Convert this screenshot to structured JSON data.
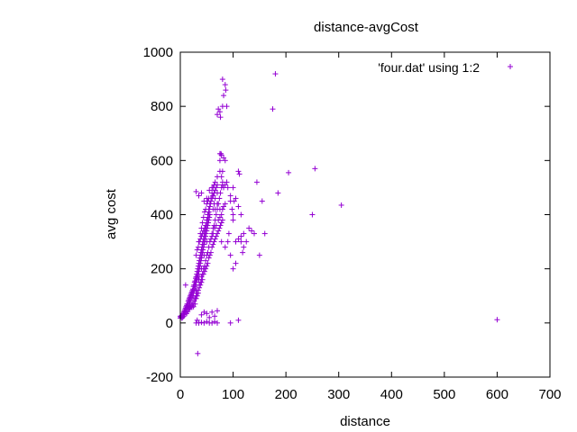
{
  "chart_data": {
    "type": "scatter",
    "title": "distance-avgCost",
    "xlabel": "distance",
    "ylabel": "avg cost",
    "xlim": [
      0,
      700
    ],
    "ylim": [
      -200,
      1000
    ],
    "xticks": [
      "0",
      "100",
      "200",
      "300",
      "400",
      "500",
      "600",
      "700"
    ],
    "yticks": [
      "-200",
      "0",
      "200",
      "400",
      "600",
      "800",
      "1000"
    ],
    "grid": false,
    "legend_position": "top-right",
    "marker": "+",
    "colors": {
      "series": "#9400d3",
      "axes": "#000000"
    },
    "series": [
      {
        "name": "'four.dat' using 1:2",
        "note_cluster": "dense cluster of points along a rising band from (0, ~20) to (~80, ~500), rendered from the points below",
        "points": [
          [
            0,
            18
          ],
          [
            1,
            22
          ],
          [
            2,
            25
          ],
          [
            3,
            28
          ],
          [
            4,
            20
          ],
          [
            5,
            35
          ],
          [
            6,
            30
          ],
          [
            7,
            40
          ],
          [
            8,
            45
          ],
          [
            9,
            50
          ],
          [
            10,
            55
          ],
          [
            10,
            40
          ],
          [
            11,
            60
          ],
          [
            12,
            65
          ],
          [
            12,
            50
          ],
          [
            13,
            70
          ],
          [
            14,
            58
          ],
          [
            15,
            80
          ],
          [
            15,
            62
          ],
          [
            16,
            85
          ],
          [
            17,
            90
          ],
          [
            17,
            70
          ],
          [
            18,
            95
          ],
          [
            18,
            75
          ],
          [
            19,
            100
          ],
          [
            20,
            105
          ],
          [
            20,
            85
          ],
          [
            21,
            110
          ],
          [
            22,
            115
          ],
          [
            22,
            95
          ],
          [
            23,
            120
          ],
          [
            24,
            125
          ],
          [
            24,
            100
          ],
          [
            25,
            135
          ],
          [
            25,
            110
          ],
          [
            26,
            140
          ],
          [
            26,
            118
          ],
          [
            27,
            150
          ],
          [
            27,
            125
          ],
          [
            28,
            155
          ],
          [
            28,
            135
          ],
          [
            29,
            165
          ],
          [
            29,
            140
          ],
          [
            30,
            170
          ],
          [
            30,
            150
          ],
          [
            30,
            120
          ],
          [
            31,
            180
          ],
          [
            31,
            160
          ],
          [
            32,
            190
          ],
          [
            32,
            165
          ],
          [
            33,
            200
          ],
          [
            33,
            175
          ],
          [
            34,
            210
          ],
          [
            34,
            180
          ],
          [
            35,
            220
          ],
          [
            35,
            190
          ],
          [
            35,
            160
          ],
          [
            36,
            230
          ],
          [
            36,
            200
          ],
          [
            37,
            240
          ],
          [
            37,
            210
          ],
          [
            38,
            250
          ],
          [
            38,
            220
          ],
          [
            39,
            260
          ],
          [
            39,
            230
          ],
          [
            40,
            270
          ],
          [
            40,
            240
          ],
          [
            40,
            200
          ],
          [
            41,
            280
          ],
          [
            41,
            250
          ],
          [
            42,
            290
          ],
          [
            42,
            260
          ],
          [
            43,
            300
          ],
          [
            43,
            270
          ],
          [
            44,
            310
          ],
          [
            44,
            280
          ],
          [
            45,
            320
          ],
          [
            45,
            290
          ],
          [
            45,
            250
          ],
          [
            46,
            330
          ],
          [
            46,
            300
          ],
          [
            47,
            340
          ],
          [
            47,
            310
          ],
          [
            48,
            350
          ],
          [
            48,
            320
          ],
          [
            49,
            360
          ],
          [
            49,
            330
          ],
          [
            50,
            370
          ],
          [
            50,
            340
          ],
          [
            50,
            300
          ],
          [
            51,
            380
          ],
          [
            51,
            350
          ],
          [
            52,
            390
          ],
          [
            52,
            360
          ],
          [
            53,
            400
          ],
          [
            53,
            370
          ],
          [
            54,
            410
          ],
          [
            54,
            380
          ],
          [
            55,
            420
          ],
          [
            55,
            390
          ],
          [
            56,
            430
          ],
          [
            56,
            400
          ],
          [
            57,
            440
          ],
          [
            58,
            450
          ],
          [
            60,
            460
          ],
          [
            62,
            470
          ],
          [
            64,
            480
          ],
          [
            66,
            490
          ],
          [
            68,
            500
          ],
          [
            70,
            510
          ],
          [
            35,
            300
          ],
          [
            38,
            330
          ],
          [
            40,
            350
          ],
          [
            42,
            370
          ],
          [
            44,
            390
          ],
          [
            46,
            410
          ],
          [
            48,
            420
          ],
          [
            50,
            440
          ],
          [
            52,
            450
          ],
          [
            54,
            460
          ],
          [
            30,
            250
          ],
          [
            32,
            270
          ],
          [
            34,
            280
          ],
          [
            36,
            300
          ],
          [
            38,
            310
          ],
          [
            40,
            320
          ],
          [
            42,
            330
          ],
          [
            44,
            340
          ],
          [
            46,
            350
          ],
          [
            48,
            360
          ],
          [
            50,
            380
          ],
          [
            52,
            400
          ],
          [
            54,
            420
          ],
          [
            56,
            440
          ],
          [
            58,
            460
          ],
          [
            60,
            480
          ],
          [
            62,
            500
          ],
          [
            64,
            510
          ],
          [
            66,
            520
          ],
          [
            70,
            480
          ],
          [
            25,
            60
          ],
          [
            28,
            70
          ],
          [
            30,
            90
          ],
          [
            32,
            100
          ],
          [
            34,
            110
          ],
          [
            36,
            130
          ],
          [
            38,
            140
          ],
          [
            40,
            150
          ],
          [
            42,
            160
          ],
          [
            44,
            180
          ],
          [
            46,
            190
          ],
          [
            48,
            200
          ],
          [
            50,
            210
          ],
          [
            52,
            220
          ],
          [
            54,
            240
          ],
          [
            56,
            250
          ],
          [
            58,
            260
          ],
          [
            60,
            280
          ],
          [
            62,
            290
          ],
          [
            64,
            300
          ],
          [
            66,
            310
          ],
          [
            68,
            320
          ],
          [
            70,
            330
          ],
          [
            72,
            340
          ],
          [
            74,
            350
          ],
          [
            76,
            360
          ],
          [
            78,
            370
          ],
          [
            80,
            380
          ],
          [
            60,
            330
          ],
          [
            62,
            350
          ],
          [
            64,
            360
          ],
          [
            66,
            380
          ],
          [
            68,
            400
          ],
          [
            70,
            420
          ],
          [
            72,
            440
          ],
          [
            74,
            460
          ],
          [
            76,
            480
          ],
          [
            78,
            500
          ],
          [
            80,
            510
          ],
          [
            75,
            420
          ],
          [
            20,
            60
          ],
          [
            22,
            65
          ],
          [
            24,
            70
          ],
          [
            26,
            80
          ],
          [
            28,
            90
          ],
          [
            30,
            100
          ],
          [
            32,
            110
          ],
          [
            34,
            120
          ],
          [
            36,
            140
          ],
          [
            38,
            150
          ],
          [
            40,
            170
          ],
          [
            42,
            180
          ],
          [
            44,
            200
          ],
          [
            46,
            210
          ],
          [
            48,
            230
          ],
          [
            50,
            250
          ],
          [
            52,
            260
          ],
          [
            54,
            280
          ],
          [
            56,
            300
          ],
          [
            58,
            310
          ],
          [
            60,
            320
          ],
          [
            62,
            330
          ],
          [
            65,
            350
          ],
          [
            68,
            360
          ],
          [
            72,
            380
          ],
          [
            75,
            390
          ],
          [
            78,
            400
          ],
          [
            80,
            420
          ],
          [
            82,
            430
          ],
          [
            85,
            440
          ],
          [
            30,
            0
          ],
          [
            32,
            10
          ],
          [
            35,
            0
          ],
          [
            40,
            2
          ],
          [
            45,
            0
          ],
          [
            50,
            5
          ],
          [
            55,
            0
          ],
          [
            60,
            0
          ],
          [
            65,
            5
          ],
          [
            70,
            0
          ],
          [
            33,
            -113
          ],
          [
            30,
            485
          ],
          [
            35,
            470
          ],
          [
            40,
            480
          ],
          [
            45,
            450
          ],
          [
            50,
            460
          ],
          [
            55,
            490
          ],
          [
            60,
            500
          ],
          [
            62,
            470
          ],
          [
            66,
            420
          ],
          [
            70,
            540
          ],
          [
            75,
            600
          ],
          [
            75,
            560
          ],
          [
            77,
            625
          ],
          [
            80,
            520
          ],
          [
            82,
            500
          ],
          [
            85,
            510
          ],
          [
            88,
            520
          ],
          [
            90,
            500
          ],
          [
            95,
            470
          ],
          [
            100,
            400
          ],
          [
            100,
            380
          ],
          [
            105,
            300
          ],
          [
            110,
            310
          ],
          [
            115,
            300
          ],
          [
            120,
            330
          ],
          [
            90,
            300
          ],
          [
            95,
            250
          ],
          [
            100,
            200
          ],
          [
            105,
            220
          ],
          [
            95,
            450
          ],
          [
            105,
            460
          ],
          [
            110,
            430
          ],
          [
            115,
            400
          ],
          [
            100,
            500
          ],
          [
            102,
            450
          ],
          [
            98,
            420
          ],
          [
            92,
            330
          ],
          [
            85,
            280
          ],
          [
            78,
            300
          ],
          [
            75,
            625
          ],
          [
            78,
            620
          ],
          [
            82,
            610
          ],
          [
            85,
            600
          ],
          [
            80,
            560
          ],
          [
            78,
            540
          ],
          [
            70,
            440
          ],
          [
            66,
            460
          ],
          [
            64,
            440
          ],
          [
            62,
            420
          ],
          [
            10,
            140
          ],
          [
            0,
            25
          ],
          [
            3,
            18
          ],
          [
            6,
            24
          ],
          [
            8,
            30
          ],
          [
            12,
            35
          ],
          [
            14,
            42
          ],
          [
            16,
            50
          ],
          [
            18,
            55
          ],
          [
            22,
            58
          ],
          [
            70,
            770
          ],
          [
            75,
            780
          ],
          [
            80,
            800
          ],
          [
            82,
            840
          ],
          [
            85,
            880
          ],
          [
            88,
            800
          ],
          [
            80,
            900
          ],
          [
            86,
            860
          ],
          [
            76,
            760
          ],
          [
            72,
            790
          ],
          [
            110,
            560
          ],
          [
            112,
            550
          ],
          [
            115,
            320
          ],
          [
            118,
            260
          ],
          [
            120,
            280
          ],
          [
            125,
            300
          ],
          [
            130,
            350
          ],
          [
            135,
            340
          ],
          [
            140,
            330
          ],
          [
            145,
            520
          ],
          [
            150,
            250
          ],
          [
            155,
            450
          ],
          [
            160,
            330
          ],
          [
            175,
            790
          ],
          [
            180,
            920
          ],
          [
            185,
            480
          ],
          [
            205,
            555
          ],
          [
            250,
            400
          ],
          [
            255,
            570
          ],
          [
            305,
            435
          ],
          [
            95,
            0
          ],
          [
            110,
            10
          ],
          [
            600,
            12
          ],
          [
            40,
            30
          ],
          [
            45,
            40
          ],
          [
            50,
            35
          ],
          [
            55,
            20
          ],
          [
            60,
            40
          ],
          [
            65,
            25
          ],
          [
            70,
            45
          ]
        ]
      }
    ]
  }
}
